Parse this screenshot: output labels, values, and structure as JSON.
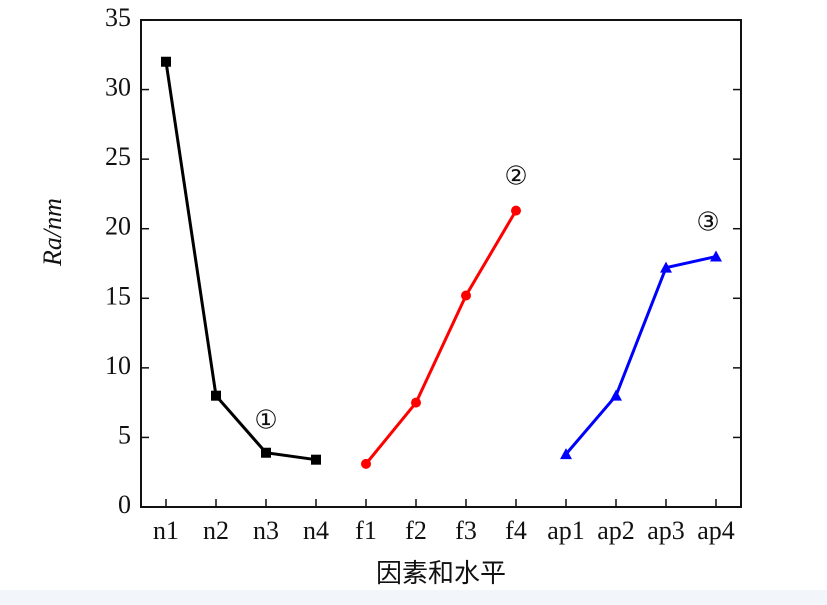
{
  "chart_data": {
    "type": "line",
    "categories": [
      "n1",
      "n2",
      "n3",
      "n4",
      "f1",
      "f2",
      "f3",
      "f4",
      "ap1",
      "ap2",
      "ap3",
      "ap4"
    ],
    "series": [
      {
        "label": "①",
        "color": "#000000",
        "marker": "square",
        "values": [
          32,
          8,
          3.9,
          3.4,
          null,
          null,
          null,
          null,
          null,
          null,
          null,
          null
        ]
      },
      {
        "label": "②",
        "color": "#ff0000",
        "marker": "circle",
        "values": [
          null,
          null,
          null,
          null,
          3.1,
          7.5,
          15.2,
          21.3,
          null,
          null,
          null,
          null
        ]
      },
      {
        "label": "③",
        "color": "#0000ff",
        "marker": "triangle",
        "values": [
          null,
          null,
          null,
          null,
          null,
          null,
          null,
          null,
          3.8,
          8.0,
          17.2,
          18.0
        ]
      }
    ],
    "ylabel": "Ra/nm",
    "xlabel": "因素和水平",
    "ylim": [
      0,
      35
    ],
    "yticks": [
      0,
      5,
      10,
      15,
      20,
      25,
      30,
      35
    ]
  }
}
